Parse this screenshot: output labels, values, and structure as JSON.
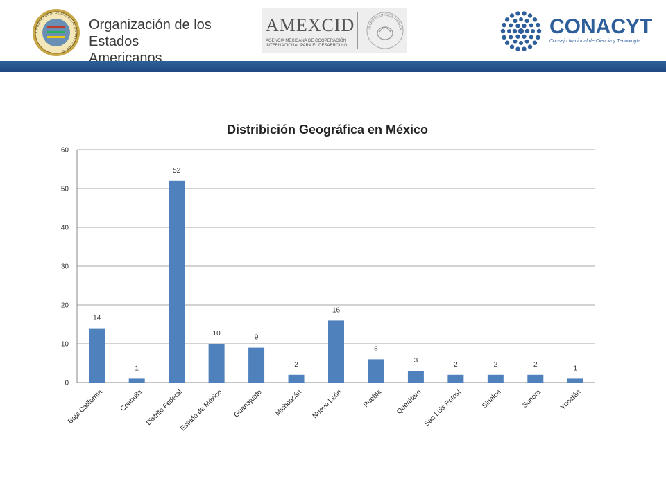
{
  "header": {
    "oas_line1": "Organización de los",
    "oas_line2": "Estados Americanos",
    "amexcid_title": "AMEXCID",
    "amexcid_sub1": "AGENCIA MEXICANA DE COOPERACIÓN",
    "amexcid_sub2": "INTERNACIONAL PARA EL DESARROLLO",
    "amexcid_seal_text": "ESTADOS UNIDOS MEXICANOS",
    "oas_seal_text": "ORGANIZACIÓN DE LOS ESTADOS AMERICANOS",
    "conacyt_title": "CONACYT",
    "conacyt_sub": "Consejo Nacional de Ciencia y Tecnología",
    "bar_color": "#2f5f9a"
  },
  "chart_data": {
    "type": "bar",
    "title": "Distribición Geográfica en México",
    "categories": [
      "Baja California",
      "Coahuila",
      "Distrito Federal",
      "Estado de México",
      "Guanajuato",
      "Michoacán",
      "Nuevo León",
      "Puebla",
      "Querétaro",
      "San Luis Potosí",
      "Sinaloa",
      "Sonora",
      "Yucatán"
    ],
    "values": [
      14,
      1,
      52,
      10,
      9,
      2,
      16,
      6,
      3,
      2,
      2,
      2,
      1
    ],
    "ylim": [
      0,
      60
    ],
    "yticks": [
      0,
      10,
      20,
      30,
      40,
      50,
      60
    ],
    "grid": true,
    "data_labels": true,
    "bar_color": "#4f81bd"
  }
}
